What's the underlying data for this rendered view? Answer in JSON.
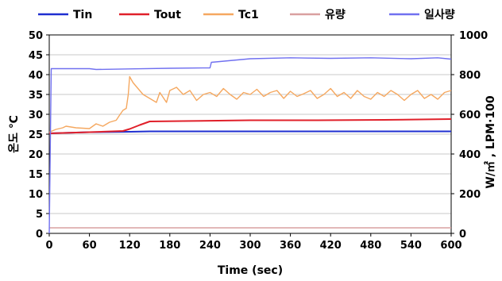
{
  "chart_data": {
    "type": "line",
    "xlabel": "Time (sec)",
    "ylabel_left": "온도 ℃",
    "ylabel_right": "W/㎡ , LPM·100",
    "xlim": [
      0,
      600
    ],
    "ylim_left": [
      0,
      50
    ],
    "ylim_right": [
      0,
      1000
    ],
    "x_ticks": [
      0,
      60,
      120,
      180,
      240,
      300,
      360,
      420,
      480,
      540,
      600
    ],
    "y_ticks_left": [
      0,
      5,
      10,
      15,
      20,
      25,
      30,
      35,
      40,
      45,
      50
    ],
    "y_ticks_right": [
      0,
      200,
      400,
      600,
      800,
      1000
    ],
    "grid": "horizontal-only",
    "legend_position": "top",
    "series": [
      {
        "name": "Tin",
        "axis": "left",
        "color": "#1f2fd0",
        "points": [
          [
            0,
            25.2
          ],
          [
            60,
            25.5
          ],
          [
            120,
            25.6
          ],
          [
            150,
            25.7
          ],
          [
            300,
            25.7
          ],
          [
            600,
            25.7
          ]
        ]
      },
      {
        "name": "Tout",
        "axis": "left",
        "color": "#e0202a",
        "points": [
          [
            0,
            25.2
          ],
          [
            60,
            25.5
          ],
          [
            110,
            25.8
          ],
          [
            120,
            26.3
          ],
          [
            135,
            27.3
          ],
          [
            150,
            28.2
          ],
          [
            200,
            28.3
          ],
          [
            300,
            28.5
          ],
          [
            400,
            28.5
          ],
          [
            500,
            28.6
          ],
          [
            600,
            28.8
          ]
        ]
      },
      {
        "name": "Tc1",
        "axis": "left",
        "color": "#f5a860",
        "points": [
          [
            0,
            25.5
          ],
          [
            10,
            26.2
          ],
          [
            20,
            26.6
          ],
          [
            25,
            27.0
          ],
          [
            40,
            26.6
          ],
          [
            60,
            26.4
          ],
          [
            70,
            27.6
          ],
          [
            80,
            27.0
          ],
          [
            90,
            28.0
          ],
          [
            100,
            28.5
          ],
          [
            105,
            29.8
          ],
          [
            110,
            31.0
          ],
          [
            115,
            31.5
          ],
          [
            118,
            35.0
          ],
          [
            120,
            39.5
          ],
          [
            125,
            38.0
          ],
          [
            130,
            37.0
          ],
          [
            140,
            35.0
          ],
          [
            150,
            34.0
          ],
          [
            160,
            33.0
          ],
          [
            165,
            35.5
          ],
          [
            175,
            33.0
          ],
          [
            180,
            36.0
          ],
          [
            190,
            36.8
          ],
          [
            200,
            35.0
          ],
          [
            210,
            36.0
          ],
          [
            220,
            33.5
          ],
          [
            230,
            35.0
          ],
          [
            240,
            35.5
          ],
          [
            250,
            34.5
          ],
          [
            260,
            36.5
          ],
          [
            270,
            35.0
          ],
          [
            280,
            33.8
          ],
          [
            290,
            35.5
          ],
          [
            300,
            35.0
          ],
          [
            310,
            36.3
          ],
          [
            320,
            34.5
          ],
          [
            330,
            35.5
          ],
          [
            340,
            36.0
          ],
          [
            350,
            34.0
          ],
          [
            360,
            35.8
          ],
          [
            370,
            34.5
          ],
          [
            380,
            35.2
          ],
          [
            390,
            36.0
          ],
          [
            400,
            34.0
          ],
          [
            410,
            35.0
          ],
          [
            420,
            36.5
          ],
          [
            430,
            34.5
          ],
          [
            440,
            35.5
          ],
          [
            450,
            34.0
          ],
          [
            460,
            36.0
          ],
          [
            470,
            34.5
          ],
          [
            480,
            33.8
          ],
          [
            490,
            35.5
          ],
          [
            500,
            34.5
          ],
          [
            510,
            36.0
          ],
          [
            520,
            35.0
          ],
          [
            530,
            33.5
          ],
          [
            540,
            35.0
          ],
          [
            550,
            36.0
          ],
          [
            560,
            34.0
          ],
          [
            570,
            35.0
          ],
          [
            580,
            33.8
          ],
          [
            590,
            35.5
          ],
          [
            600,
            36.0
          ]
        ]
      },
      {
        "name": "유량",
        "axis": "right",
        "color": "#d9a0a0",
        "points": [
          [
            0,
            28
          ],
          [
            600,
            28
          ]
        ]
      },
      {
        "name": "일사량",
        "axis": "right",
        "color": "#7070f0",
        "points": [
          [
            0,
            0
          ],
          [
            3,
            830
          ],
          [
            60,
            830
          ],
          [
            70,
            826
          ],
          [
            120,
            829
          ],
          [
            180,
            832
          ],
          [
            240,
            834
          ],
          [
            242,
            862
          ],
          [
            300,
            880
          ],
          [
            360,
            885
          ],
          [
            420,
            882
          ],
          [
            480,
            885
          ],
          [
            540,
            880
          ],
          [
            580,
            885
          ],
          [
            600,
            878
          ]
        ]
      }
    ]
  }
}
